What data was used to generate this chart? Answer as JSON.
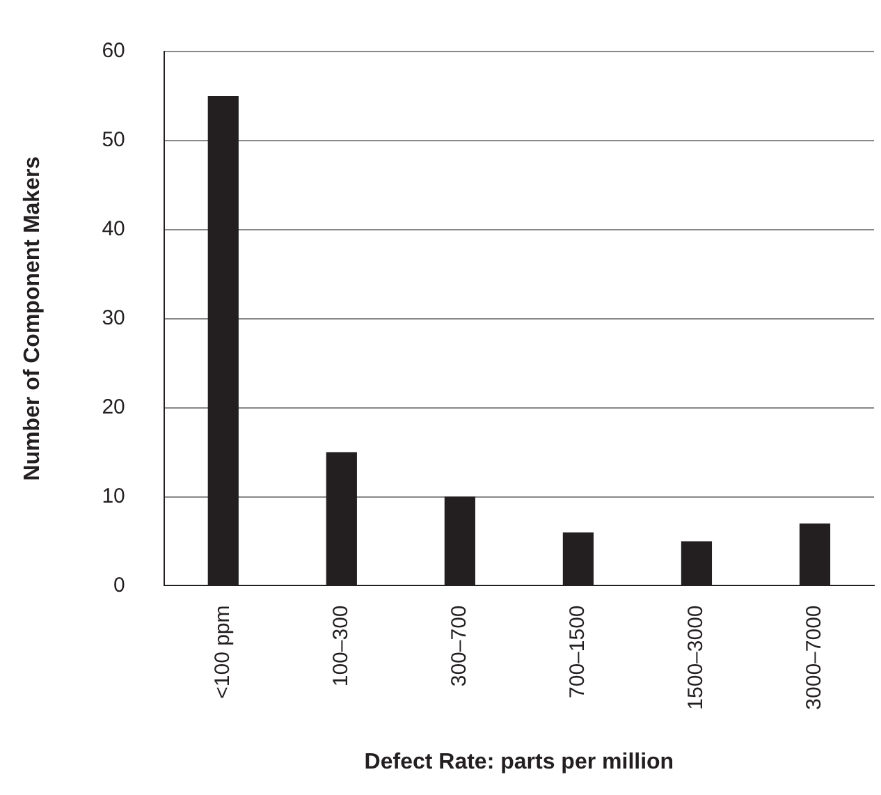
{
  "chart_data": {
    "type": "bar",
    "xlabel": "Defect Rate: parts per million",
    "ylabel": "Number of Component Makers",
    "categories": [
      "<100 ppm",
      "100–300",
      "300–700",
      "700–1500",
      "1500–3000",
      "3000–7000"
    ],
    "values": [
      55,
      15,
      10,
      6,
      5,
      7
    ],
    "color": "#231f20",
    "ylim": [
      0,
      60
    ],
    "yticks": [
      0,
      10,
      20,
      30,
      40,
      50,
      60
    ],
    "grid": "y",
    "legend": false
  }
}
